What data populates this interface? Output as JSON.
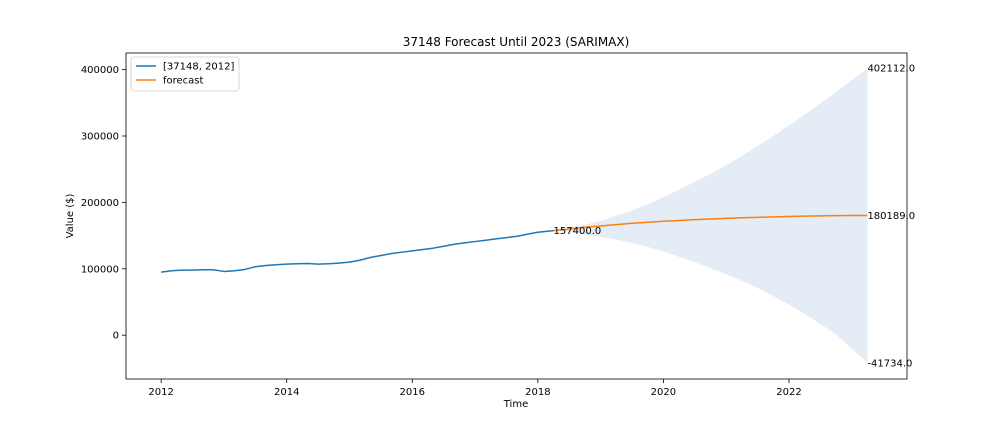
{
  "chart_data": {
    "type": "line",
    "title": "37148 Forecast Until 2023 (SARIMAX)",
    "xlabel": "Time",
    "ylabel": "Value ($)",
    "xlim": [
      2011.44,
      2023.88
    ],
    "ylim": [
      -66000,
      425000
    ],
    "xticks": [
      2012,
      2014,
      2016,
      2018,
      2020,
      2022
    ],
    "yticks": [
      0,
      100000,
      200000,
      300000,
      400000
    ],
    "legend": "top-left",
    "grid": false,
    "colors": {
      "history": "#1f77b4",
      "forecast": "#ff7f0e",
      "band": "#dbe6f3"
    },
    "series": [
      {
        "name": "[37148, 2012]",
        "x": [
          2012.0,
          2012.17,
          2012.33,
          2012.5,
          2012.67,
          2012.83,
          2013.0,
          2013.17,
          2013.33,
          2013.5,
          2013.67,
          2013.83,
          2014.0,
          2014.17,
          2014.33,
          2014.5,
          2014.67,
          2014.83,
          2015.0,
          2015.17,
          2015.33,
          2015.5,
          2015.67,
          2015.83,
          2016.0,
          2016.17,
          2016.33,
          2016.5,
          2016.67,
          2016.83,
          2017.0,
          2017.17,
          2017.33,
          2017.5,
          2017.67,
          2017.83,
          2018.0,
          2018.25
        ],
        "values": [
          95000,
          97000,
          98000,
          98000,
          98500,
          98500,
          96000,
          97000,
          99000,
          103000,
          105000,
          106000,
          107000,
          107500,
          108000,
          107000,
          107500,
          108500,
          110000,
          113000,
          117000,
          120000,
          123000,
          125000,
          127000,
          129000,
          131000,
          134000,
          137000,
          139000,
          141000,
          143000,
          145000,
          147000,
          149000,
          152000,
          155000,
          157400
        ]
      },
      {
        "name": "forecast",
        "x": [
          2018.25,
          2018.5,
          2018.75,
          2019.0,
          2019.25,
          2019.5,
          2019.75,
          2020.0,
          2020.25,
          2020.5,
          2020.75,
          2021.0,
          2021.25,
          2021.5,
          2021.75,
          2022.0,
          2022.25,
          2022.5,
          2022.75,
          2023.0,
          2023.25
        ],
        "values": [
          157400,
          160000,
          162500,
          164500,
          166500,
          168500,
          170000,
          171500,
          172800,
          174000,
          175000,
          176000,
          176800,
          177500,
          178200,
          178800,
          179300,
          179700,
          180000,
          180200,
          180189
        ]
      }
    ],
    "confidence_band": {
      "x": [
        2018.25,
        2018.5,
        2018.75,
        2019.0,
        2019.25,
        2019.5,
        2019.75,
        2020.0,
        2020.25,
        2020.5,
        2020.75,
        2021.0,
        2021.25,
        2021.5,
        2021.75,
        2022.0,
        2022.25,
        2022.5,
        2022.75,
        2023.0,
        2023.25
      ],
      "upper": [
        157400,
        162000,
        166500,
        172000,
        180000,
        188000,
        197000,
        208000,
        219000,
        231000,
        243000,
        256000,
        270000,
        285000,
        300000,
        316000,
        332000,
        349000,
        366000,
        384000,
        402112
      ],
      "lower": [
        157400,
        156000,
        152000,
        148000,
        144000,
        139000,
        133000,
        126000,
        118000,
        110000,
        101000,
        92000,
        82000,
        71000,
        59000,
        46000,
        32000,
        17000,
        1000,
        -20000,
        -41734
      ]
    },
    "annotations": [
      {
        "text": "157400.0",
        "x": 2018.25,
        "y": 157400
      },
      {
        "text": "402112.0",
        "x": 2023.25,
        "y": 402112
      },
      {
        "text": "180189.0",
        "x": 2023.25,
        "y": 180189
      },
      {
        "text": "-41734.0",
        "x": 2023.25,
        "y": -41734
      }
    ]
  }
}
